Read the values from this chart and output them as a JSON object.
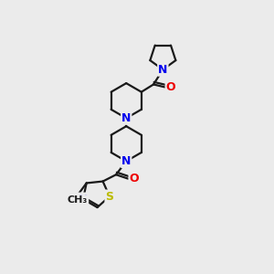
{
  "bg_color": "#ebebeb",
  "bond_color": "#1a1a1a",
  "N_color": "#0000ee",
  "O_color": "#ee0000",
  "S_color": "#bbbb00",
  "line_width": 1.6,
  "font_size": 9,
  "figsize": [
    3.0,
    3.0
  ],
  "dpi": 100,
  "xlim": [
    0,
    10
  ],
  "ylim": [
    0,
    10
  ]
}
